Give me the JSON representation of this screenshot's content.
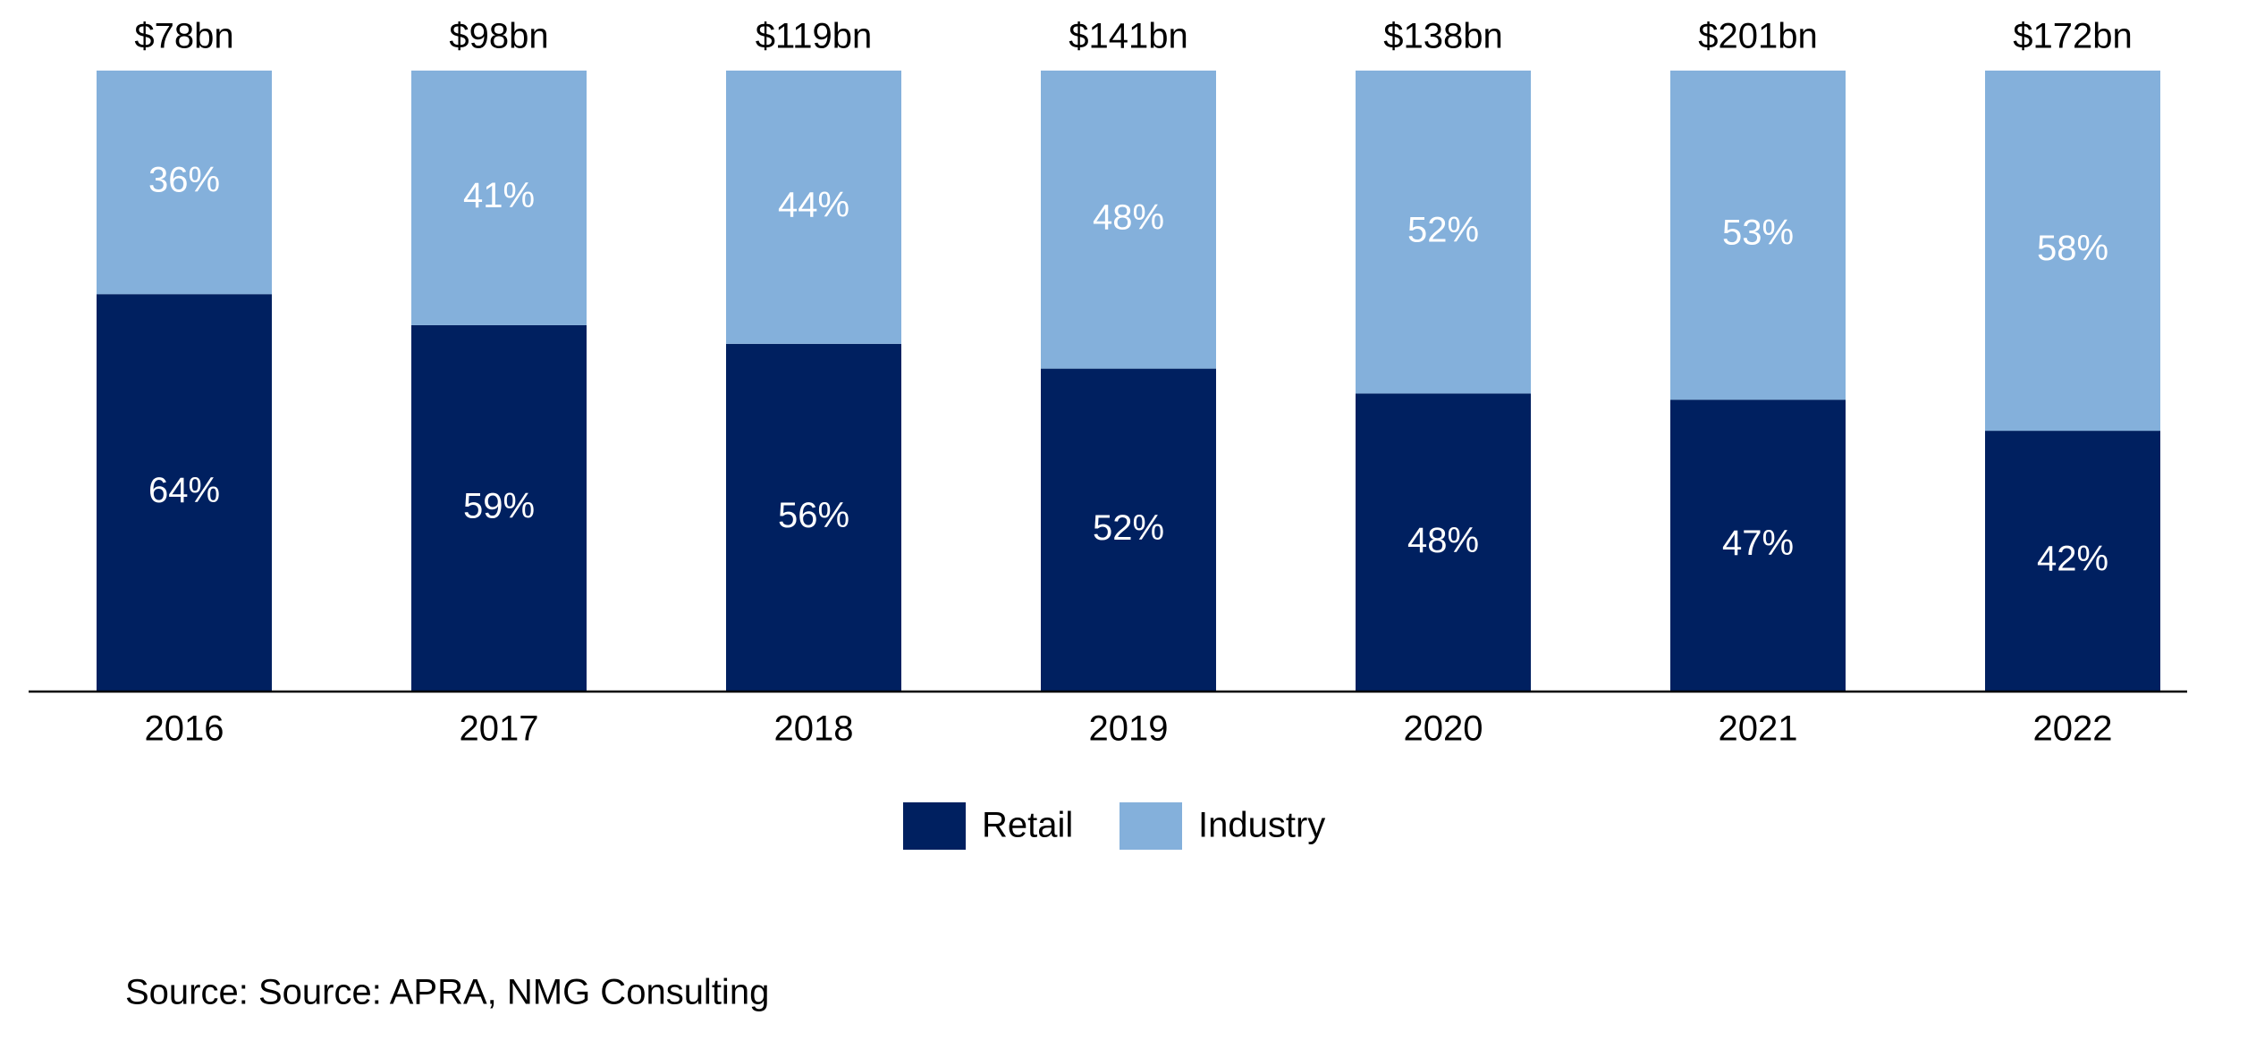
{
  "chart_data": {
    "type": "stacked_bar",
    "categories": [
      "2016",
      "2017",
      "2018",
      "2019",
      "2020",
      "2021",
      "2022"
    ],
    "series": [
      {
        "name": "Retail",
        "color": "#002060",
        "values": [
          64,
          59,
          56,
          52,
          48,
          47,
          42
        ],
        "value_labels": [
          "64%",
          "59%",
          "56%",
          "52%",
          "48%",
          "47%",
          "42%"
        ]
      },
      {
        "name": "Industry",
        "color": "#84b0db",
        "values": [
          36,
          41,
          44,
          48,
          52,
          53,
          58
        ],
        "value_labels": [
          "36%",
          "41%",
          "44%",
          "48%",
          "52%",
          "53%",
          "58%"
        ]
      }
    ],
    "totals": {
      "values": [
        78,
        98,
        119,
        141,
        138,
        201,
        172
      ],
      "value_labels": [
        "$78bn",
        "$98bn",
        "$119bn",
        "$141bn",
        "$138bn",
        "$201bn",
        "$172bn"
      ]
    },
    "ylim": [
      0,
      100
    ],
    "source": "Source: Source: APRA, NMG Consulting"
  }
}
